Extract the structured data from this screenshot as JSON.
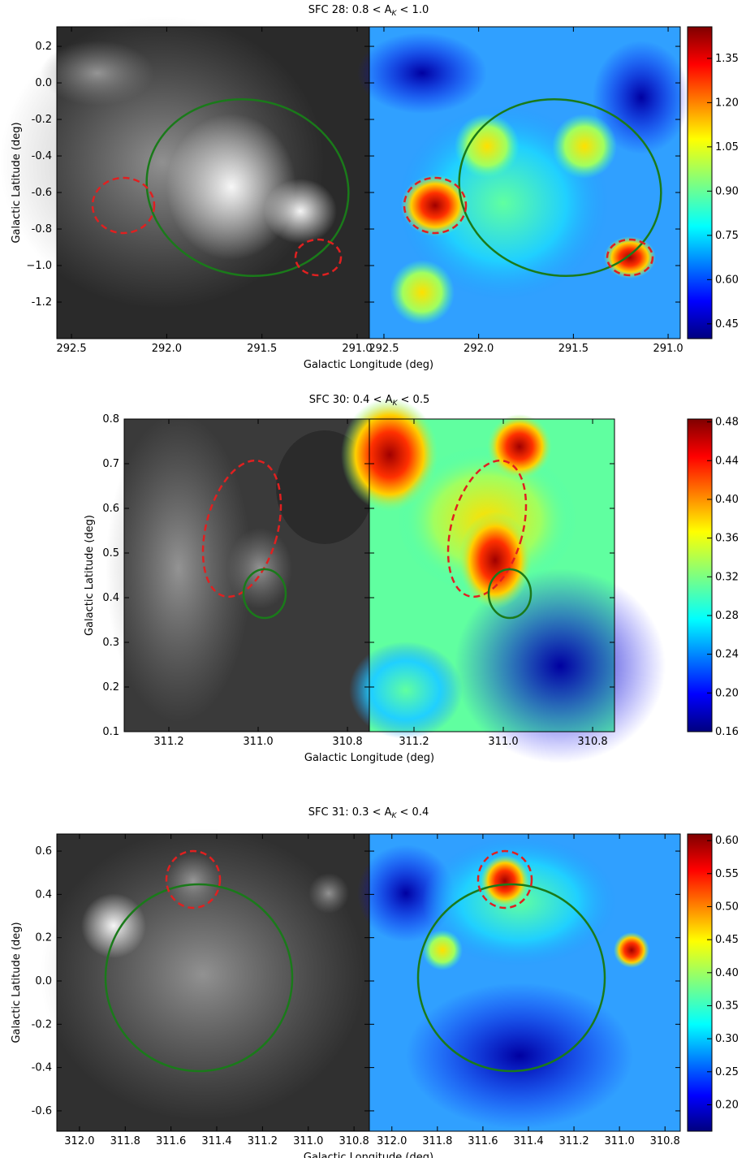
{
  "chart_data": [
    {
      "type": "image",
      "title": "SFC 28: 0.8 < A_K < 1.0",
      "xlabel": "Galactic Longitude (deg)",
      "ylabel": "Galactic Latitude (deg)",
      "xlim": [
        292.577,
        290.936
      ],
      "xticks": [
        292.5,
        {
          "value": 292,
          "label": "292.0"
        },
        291.5,
        {
          "value": 291,
          "label": "291.0"
        }
      ],
      "ylim": [
        -1.4,
        0.307
      ],
      "yticks": [
        0.2,
        {
          "value": 0,
          "label": "0.0"
        },
        -0.2,
        -0.4,
        -0.6,
        -0.8,
        {
          "value": -1,
          "label": "−1.0"
        },
        -1.2
      ],
      "colormap": "jet",
      "clim": [
        0.4,
        1.457
      ],
      "cticks": [
        0.45,
        {
          "value": 0.6,
          "label": "0.60"
        },
        0.75,
        {
          "value": 0.9,
          "label": "0.90"
        },
        1.05,
        {
          "value": 1.2,
          "label": "1.20"
        },
        1.35
      ]
    },
    {
      "type": "image",
      "title": "SFC 30: 0.4 < A_K < 0.5",
      "xlabel": "Galactic Longitude (deg)",
      "ylabel": "Galactic Latitude (deg)",
      "xlim": [
        311.3,
        310.751
      ],
      "xticks": [
        311.2,
        {
          "value": 311,
          "label": "311.0"
        },
        310.8
      ],
      "ylim": [
        0.1,
        0.8
      ],
      "yticks": [
        0.1,
        0.2,
        0.3,
        0.4,
        0.5,
        0.6,
        0.7,
        0.8
      ],
      "colormap": "jet",
      "clim": [
        0.16,
        0.483
      ],
      "cticks": [
        0.16,
        {
          "value": 0.2,
          "label": "0.20"
        },
        0.24,
        0.28,
        0.32,
        0.36,
        {
          "value": 0.4,
          "label": "0.40"
        },
        0.44,
        0.48
      ]
    },
    {
      "type": "image",
      "title": "SFC 31: 0.3 < A_K < 0.4",
      "xlabel": "Galactic Longitude (deg)",
      "ylabel": "Galactic Latitude (deg)",
      "xlim": [
        312.099,
        310.733
      ],
      "xticks": [
        {
          "value": 312,
          "label": "312.0"
        },
        311.8,
        311.6,
        311.4,
        311.2,
        {
          "value": 311,
          "label": "311.0"
        },
        310.8
      ],
      "ylim": [
        -0.694,
        0.679
      ],
      "yticks": [
        0.6,
        0.4,
        0.2,
        {
          "value": 0,
          "label": "0.0"
        },
        -0.2,
        -0.4,
        -0.6
      ],
      "colormap": "jet",
      "clim": [
        0.16,
        0.61
      ],
      "cticks": [
        {
          "value": 0.6,
          "label": "0.60"
        },
        0.55,
        {
          "value": 0.5,
          "label": "0.50"
        },
        0.45,
        {
          "value": 0.4,
          "label": "0.40"
        },
        0.35,
        {
          "value": 0.3,
          "label": "0.30"
        },
        0.25,
        {
          "value": 0.2,
          "label": "0.20"
        }
      ]
    }
  ]
}
